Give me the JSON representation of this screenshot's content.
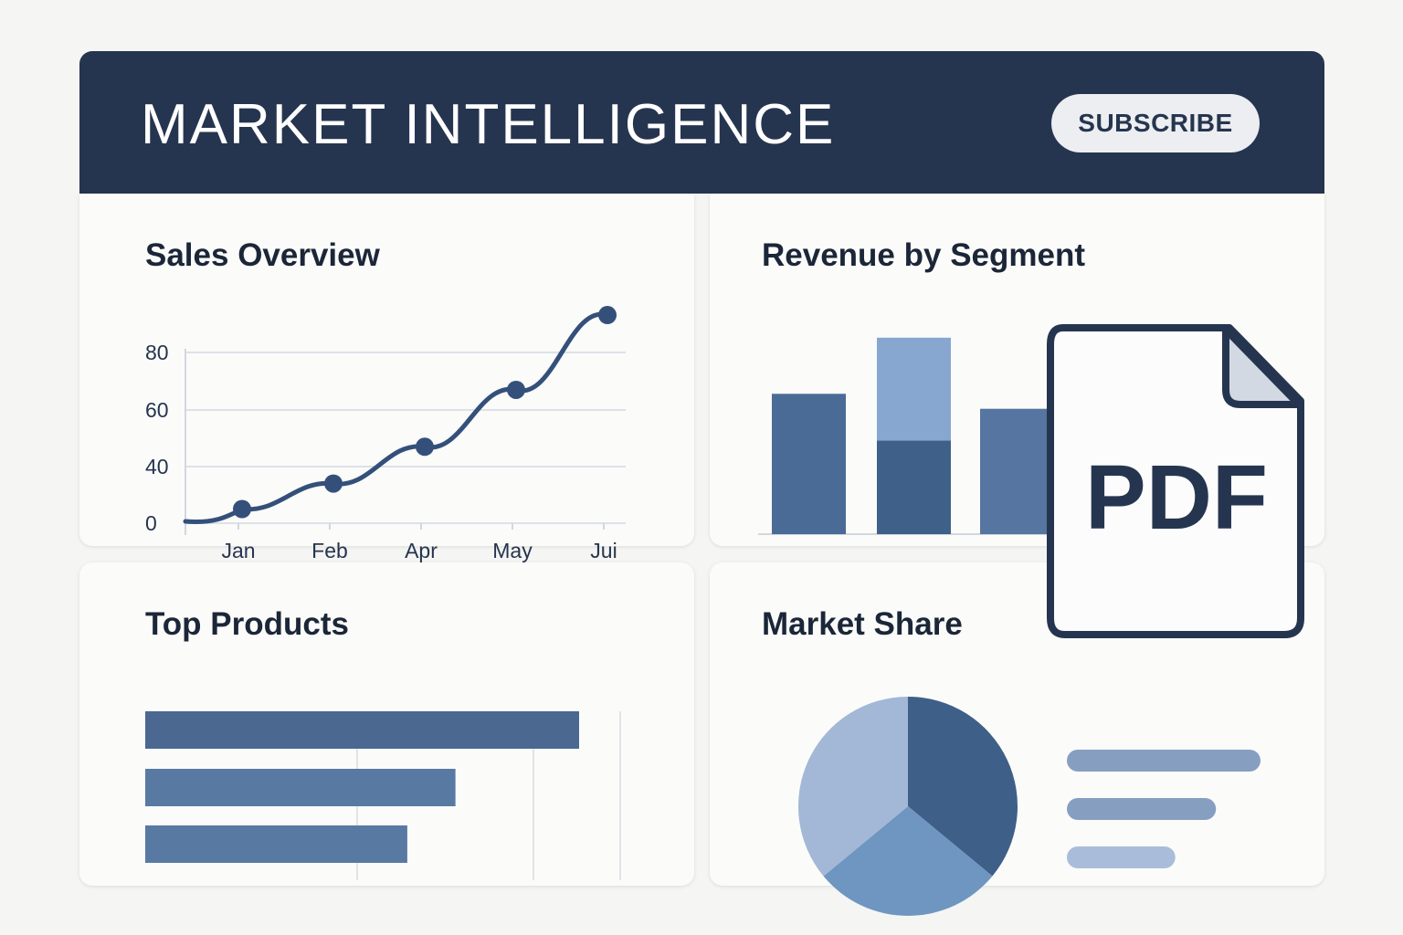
{
  "header": {
    "title": "MARKET INTELLIGENCE",
    "subscribe_label": "SUBSCRIBE"
  },
  "colors": {
    "header_bg": "#26354f",
    "accent_dark": "#3e5f87",
    "accent_mid": "#6f96c0",
    "accent_light": "#a3b8d6"
  },
  "cards": {
    "sales_title": "Sales Overview",
    "revenue_title": "Revenue by Segment",
    "products_title": "Top Products",
    "share_title": "Market Share"
  },
  "pdf_icon": {
    "label": "PDF",
    "icon": "pdf-file-icon"
  },
  "chart_data": [
    {
      "type": "line",
      "title": "Sales Overview",
      "y_ticks": [
        0,
        40,
        60,
        80
      ],
      "categories": [
        "Jan",
        "Feb",
        "Apr",
        "May",
        "Jui"
      ],
      "x": [
        1,
        2,
        3,
        4,
        5
      ],
      "values": [
        10,
        28,
        47,
        67,
        93
      ],
      "grid": true
    },
    {
      "type": "bar",
      "title": "Revenue by Segment",
      "categories": [
        "",
        "",
        ""
      ],
      "series": [
        {
          "values": [
            75,
            50,
            67
          ]
        },
        {
          "values": [
            0,
            55,
            0
          ]
        }
      ],
      "stacked": true,
      "ylim": [
        0,
        105
      ]
    },
    {
      "type": "bar",
      "orientation": "horizontal",
      "title": "Top Products",
      "categories": [
        "",
        "",
        ""
      ],
      "values": [
        100,
        71.5,
        60.4
      ],
      "xlim": [
        0,
        109
      ]
    },
    {
      "type": "pie",
      "title": "Market Share",
      "values": [
        36,
        28,
        36
      ],
      "colors": [
        "#3e5f87",
        "#6f96c0",
        "#a3b8d6"
      ],
      "legend_placement": "right",
      "legend_values": [
        100,
        77,
        56
      ],
      "legend_colors": [
        "#869fc1",
        "#869fc1",
        "#a9bddb"
      ]
    }
  ]
}
